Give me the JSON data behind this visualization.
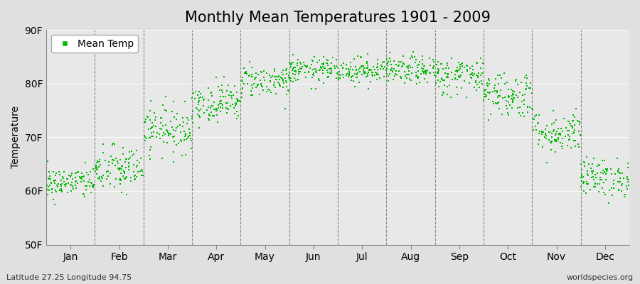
{
  "title": "Monthly Mean Temperatures 1901 - 2009",
  "ylabel": "Temperature",
  "footnote_left": "Latitude 27.25 Longitude 94.75",
  "footnote_right": "worldspecies.org",
  "legend_label": "Mean Temp",
  "ylim": [
    50,
    90
  ],
  "yticks": [
    50,
    60,
    70,
    80,
    90
  ],
  "ytick_labels": [
    "50F",
    "60F",
    "70F",
    "80F",
    "90F"
  ],
  "months": [
    "Jan",
    "Feb",
    "Mar",
    "Apr",
    "May",
    "Jun",
    "Jul",
    "Aug",
    "Sep",
    "Oct",
    "Nov",
    "Dec"
  ],
  "dot_color": "#00bb00",
  "bg_color": "#e0e0e0",
  "plot_bg_color": "#e8e8e8",
  "grid_color": "#888888",
  "title_fontsize": 15,
  "axis_fontsize": 10,
  "tick_fontsize": 10,
  "footnote_fontsize": 8,
  "n_years": 109,
  "mean_temps": [
    61.5,
    64.0,
    71.5,
    76.5,
    80.5,
    82.5,
    82.5,
    82.5,
    81.5,
    78.0,
    71.0,
    62.5
  ],
  "std_temps": [
    1.5,
    2.2,
    2.2,
    1.8,
    1.5,
    1.2,
    1.2,
    1.3,
    1.8,
    2.2,
    2.0,
    1.8
  ],
  "seed": 42,
  "dot_size": 3
}
